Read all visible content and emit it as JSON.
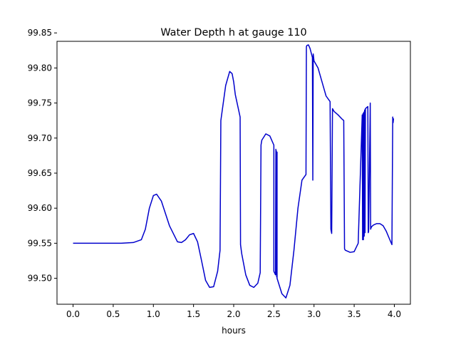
{
  "chart_data": {
    "type": "line",
    "title": "Water Depth h at gauge 110",
    "xlabel": "hours",
    "ylabel": "",
    "xlim": [
      -0.2,
      4.2
    ],
    "ylim": [
      99.463,
      99.838
    ],
    "xticks": [
      0.0,
      0.5,
      1.0,
      1.5,
      2.0,
      2.5,
      3.0,
      3.5,
      4.0
    ],
    "xtick_labels": [
      "0.0",
      "0.5",
      "1.0",
      "1.5",
      "2.0",
      "2.5",
      "3.0",
      "3.5",
      "4.0"
    ],
    "yticks": [
      99.5,
      99.55,
      99.6,
      99.65,
      99.7,
      99.75,
      99.8,
      99.85
    ],
    "ytick_labels": [
      "99.50",
      "99.55",
      "99.60",
      "99.65",
      "99.70",
      "99.75",
      "99.80",
      "99.85"
    ],
    "grid": false,
    "series": [
      {
        "name": "",
        "color": "#0000cc",
        "x": [
          0.0,
          0.3,
          0.6,
          0.75,
          0.85,
          0.9,
          0.95,
          1.0,
          1.04,
          1.1,
          1.2,
          1.3,
          1.35,
          1.4,
          1.45,
          1.5,
          1.55,
          1.6,
          1.65,
          1.7,
          1.75,
          1.8,
          1.83,
          1.84,
          1.9,
          1.95,
          1.98,
          2.0,
          2.02,
          2.08,
          2.085,
          2.1,
          2.15,
          2.2,
          2.25,
          2.3,
          2.33,
          2.34,
          2.35,
          2.4,
          2.45,
          2.5,
          2.5,
          2.52,
          2.525,
          2.53,
          2.53,
          2.535,
          2.54,
          2.54,
          2.6,
          2.65,
          2.7,
          2.75,
          2.8,
          2.85,
          2.9,
          2.905,
          2.91,
          2.93,
          2.95,
          2.98,
          2.985,
          2.99,
          2.992,
          3.0,
          3.05,
          3.1,
          3.15,
          3.2,
          3.21,
          3.22,
          3.23,
          3.25,
          3.3,
          3.35,
          3.37,
          3.38,
          3.39,
          3.45,
          3.5,
          3.55,
          3.6,
          3.605,
          3.61,
          3.615,
          3.62,
          3.625,
          3.63,
          3.635,
          3.64,
          3.67,
          3.675,
          3.68,
          3.7,
          3.705,
          3.71,
          3.72,
          3.74,
          3.78,
          3.82,
          3.86,
          3.9,
          3.94,
          3.97,
          3.98,
          3.985,
          3.99
        ],
        "y": [
          99.55,
          99.55,
          99.55,
          99.551,
          99.555,
          99.57,
          99.6,
          99.618,
          99.62,
          99.61,
          99.575,
          99.552,
          99.551,
          99.555,
          99.562,
          99.564,
          99.552,
          99.525,
          99.497,
          99.487,
          99.488,
          99.51,
          99.54,
          99.725,
          99.775,
          99.795,
          99.792,
          99.78,
          99.762,
          99.73,
          99.548,
          99.535,
          99.505,
          99.49,
          99.487,
          99.493,
          99.508,
          99.69,
          99.697,
          99.706,
          99.703,
          99.69,
          99.51,
          99.505,
          99.684,
          99.505,
          99.682,
          99.502,
          99.68,
          99.5,
          99.478,
          99.472,
          99.49,
          99.54,
          99.6,
          99.64,
          99.648,
          99.83,
          99.832,
          99.833,
          99.828,
          99.815,
          99.64,
          99.82,
          99.818,
          99.81,
          99.8,
          99.78,
          99.76,
          99.752,
          99.57,
          99.564,
          99.742,
          99.738,
          99.733,
          99.727,
          99.725,
          99.542,
          99.54,
          99.537,
          99.538,
          99.55,
          99.733,
          99.555,
          99.735,
          99.555,
          99.737,
          99.56,
          99.74,
          99.565,
          99.742,
          99.745,
          99.565,
          99.567,
          99.75,
          99.57,
          99.572,
          99.574,
          99.576,
          99.578,
          99.578,
          99.575,
          99.567,
          99.556,
          99.548,
          99.73,
          99.722,
          99.728
        ]
      }
    ]
  }
}
